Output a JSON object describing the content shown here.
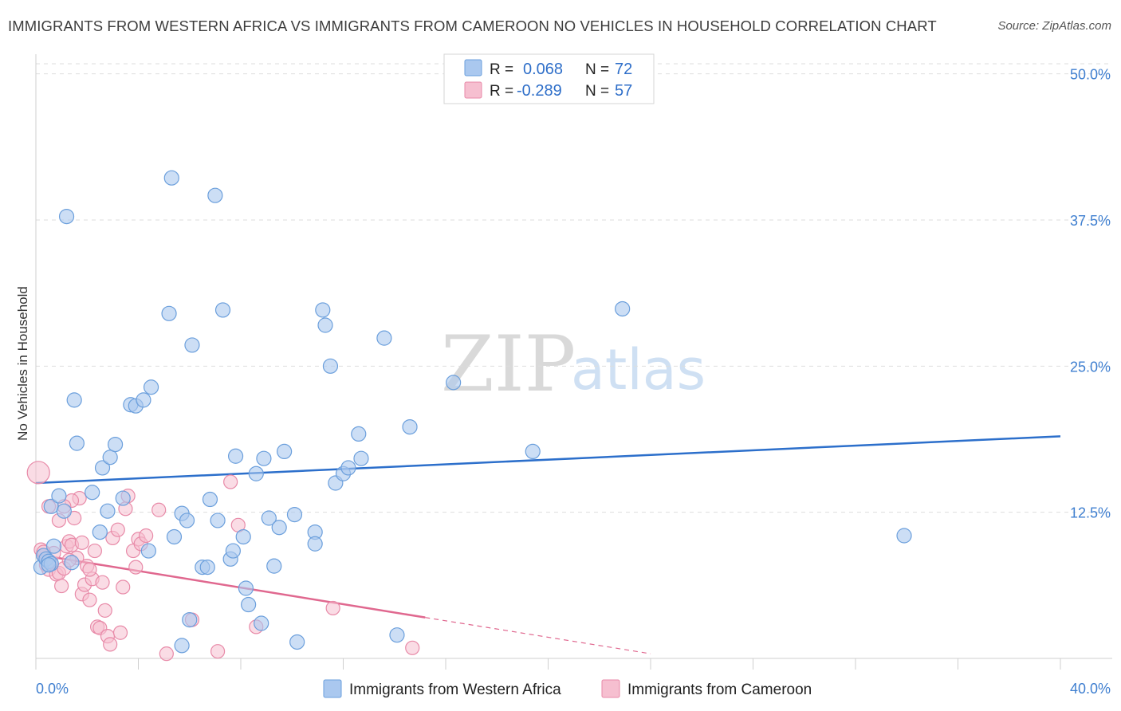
{
  "header": {
    "title": "IMMIGRANTS FROM WESTERN AFRICA VS IMMIGRANTS FROM CAMEROON NO VEHICLES IN HOUSEHOLD CORRELATION CHART",
    "source": "Source: ZipAtlas.com"
  },
  "watermark": {
    "zip": "ZIP",
    "atlas": "atlas"
  },
  "colors": {
    "blue_fill": "#aac8ef",
    "blue_stroke": "#6b9fdc",
    "blue_line": "#2c6fcb",
    "pink_fill": "#f6bfd0",
    "pink_stroke": "#e88aa8",
    "pink_line": "#e0688f",
    "tick_text": "#3f7fd0",
    "grid": "#dddddd"
  },
  "legend": {
    "rows": [
      {
        "r_label": "R =",
        "r_value": "0.068",
        "n_label": "N =",
        "n_value": "72"
      },
      {
        "r_label": "R =",
        "r_value": "-0.289",
        "n_label": "N =",
        "n_value": "57"
      }
    ]
  },
  "chart_data": {
    "type": "scatter",
    "title": "IMMIGRANTS FROM WESTERN AFRICA VS IMMIGRANTS FROM CAMEROON NO VEHICLES IN HOUSEHOLD CORRELATION CHART",
    "xlabel": "",
    "ylabel": "No Vehicles in Household",
    "xlim": [
      0,
      40
    ],
    "ylim": [
      0,
      51
    ],
    "x_tick_labels": [
      "0.0%",
      "40.0%"
    ],
    "y_ticks": [
      12.5,
      25.0,
      37.5,
      50.0
    ],
    "y_tick_labels": [
      "12.5%",
      "25.0%",
      "37.5%",
      "50.0%"
    ],
    "grid": true,
    "series": [
      {
        "name": "Immigrants from Western Africa",
        "color": "#aac8ef",
        "trend": {
          "x": [
            0,
            40
          ],
          "y": [
            15.0,
            19.0
          ]
        },
        "points": [
          [
            0.2,
            7.8
          ],
          [
            0.3,
            8.8
          ],
          [
            0.4,
            8.5
          ],
          [
            0.5,
            8.3
          ],
          [
            0.6,
            8.1
          ],
          [
            0.7,
            9.6
          ],
          [
            0.6,
            13.0
          ],
          [
            0.9,
            13.9
          ],
          [
            1.1,
            12.6
          ],
          [
            1.4,
            8.2
          ],
          [
            1.5,
            22.1
          ],
          [
            1.6,
            18.4
          ],
          [
            1.2,
            37.8
          ],
          [
            2.2,
            14.2
          ],
          [
            2.5,
            10.8
          ],
          [
            2.6,
            16.3
          ],
          [
            2.9,
            17.2
          ],
          [
            2.8,
            12.6
          ],
          [
            3.1,
            18.3
          ],
          [
            3.4,
            13.7
          ],
          [
            3.7,
            21.7
          ],
          [
            3.9,
            21.6
          ],
          [
            4.2,
            22.1
          ],
          [
            4.5,
            23.2
          ],
          [
            4.4,
            9.2
          ],
          [
            5.2,
            29.5
          ],
          [
            5.3,
            41.1
          ],
          [
            5.4,
            10.4
          ],
          [
            5.7,
            12.4
          ],
          [
            5.9,
            11.8
          ],
          [
            6.0,
            3.3
          ],
          [
            6.1,
            26.8
          ],
          [
            6.5,
            7.8
          ],
          [
            6.7,
            7.8
          ],
          [
            6.8,
            13.6
          ],
          [
            7.0,
            39.6
          ],
          [
            7.1,
            11.8
          ],
          [
            7.3,
            29.8
          ],
          [
            7.6,
            8.5
          ],
          [
            7.7,
            9.2
          ],
          [
            8.1,
            10.4
          ],
          [
            8.2,
            6.0
          ],
          [
            8.3,
            4.6
          ],
          [
            7.8,
            17.3
          ],
          [
            8.6,
            15.8
          ],
          [
            8.8,
            3.0
          ],
          [
            8.9,
            17.1
          ],
          [
            9.1,
            12.0
          ],
          [
            9.3,
            7.9
          ],
          [
            9.5,
            11.2
          ],
          [
            9.7,
            17.7
          ],
          [
            10.1,
            12.3
          ],
          [
            10.2,
            1.4
          ],
          [
            10.9,
            10.8
          ],
          [
            10.9,
            9.8
          ],
          [
            11.2,
            29.8
          ],
          [
            11.3,
            28.5
          ],
          [
            11.5,
            25.0
          ],
          [
            11.7,
            15.0
          ],
          [
            12.0,
            15.8
          ],
          [
            12.2,
            16.3
          ],
          [
            12.6,
            19.2
          ],
          [
            12.7,
            17.1
          ],
          [
            13.6,
            27.4
          ],
          [
            14.1,
            2.0
          ],
          [
            14.6,
            19.8
          ],
          [
            16.3,
            23.6
          ],
          [
            19.4,
            17.7
          ],
          [
            22.9,
            29.9
          ],
          [
            33.9,
            10.5
          ],
          [
            0.5,
            8.0
          ],
          [
            5.7,
            1.1
          ]
        ]
      },
      {
        "name": "Immigrants from Cameroon",
        "color": "#f6bfd0",
        "trend": {
          "x": [
            0,
            15.2
          ],
          "y": [
            8.9,
            3.5
          ]
        },
        "trend_dashed": {
          "x": [
            15.2,
            24
          ],
          "y": [
            3.5,
            0.4
          ]
        },
        "points": [
          [
            0.1,
            15.9
          ],
          [
            0.2,
            9.3
          ],
          [
            0.3,
            8.8
          ],
          [
            0.4,
            8.0
          ],
          [
            0.5,
            7.6
          ],
          [
            0.6,
            8.2
          ],
          [
            0.7,
            9.0
          ],
          [
            0.8,
            7.2
          ],
          [
            0.9,
            7.3
          ],
          [
            1.0,
            6.2
          ],
          [
            1.1,
            7.7
          ],
          [
            1.2,
            9.6
          ],
          [
            1.3,
            10.0
          ],
          [
            1.4,
            9.7
          ],
          [
            1.5,
            12.0
          ],
          [
            1.6,
            8.6
          ],
          [
            1.7,
            13.7
          ],
          [
            1.8,
            5.5
          ],
          [
            1.9,
            6.3
          ],
          [
            2.0,
            7.9
          ],
          [
            2.1,
            5.0
          ],
          [
            2.2,
            6.8
          ],
          [
            2.3,
            9.2
          ],
          [
            2.4,
            2.7
          ],
          [
            2.5,
            2.6
          ],
          [
            2.6,
            6.5
          ],
          [
            2.7,
            4.1
          ],
          [
            2.8,
            1.9
          ],
          [
            2.9,
            1.2
          ],
          [
            3.0,
            10.3
          ],
          [
            3.2,
            11.0
          ],
          [
            3.3,
            2.2
          ],
          [
            3.4,
            6.1
          ],
          [
            3.5,
            12.8
          ],
          [
            3.6,
            13.9
          ],
          [
            3.8,
            9.2
          ],
          [
            3.9,
            7.8
          ],
          [
            4.0,
            10.2
          ],
          [
            4.1,
            9.8
          ],
          [
            4.3,
            10.5
          ],
          [
            4.8,
            12.7
          ],
          [
            5.1,
            0.4
          ],
          [
            6.1,
            3.3
          ],
          [
            7.1,
            0.6
          ],
          [
            7.6,
            15.1
          ],
          [
            7.9,
            11.4
          ],
          [
            8.6,
            2.7
          ],
          [
            11.6,
            4.3
          ],
          [
            14.7,
            0.9
          ],
          [
            0.5,
            13.0
          ],
          [
            1.4,
            13.5
          ],
          [
            1.1,
            13.0
          ],
          [
            1.8,
            9.9
          ],
          [
            0.3,
            9.1
          ],
          [
            0.9,
            11.8
          ],
          [
            2.1,
            7.6
          ],
          [
            1.3,
            8.4
          ]
        ]
      }
    ]
  },
  "bottom_legend": {
    "items": [
      {
        "label": "Immigrants from Western Africa"
      },
      {
        "label": "Immigrants from Cameroon"
      }
    ]
  }
}
